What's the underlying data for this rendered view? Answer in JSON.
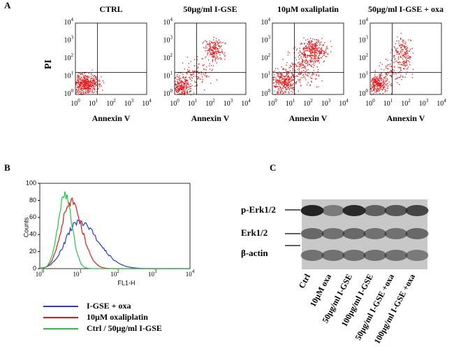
{
  "panel_a": {
    "label": "A",
    "y_label": "PI",
    "log_ticks": [
      {
        "base": "10",
        "exp": "0"
      },
      {
        "base": "10",
        "exp": "1"
      },
      {
        "base": "10",
        "exp": "2"
      },
      {
        "base": "10",
        "exp": "3"
      },
      {
        "base": "10",
        "exp": "4"
      }
    ],
    "plots": [
      {
        "title": "CTRL",
        "x_label": "Annexin V"
      },
      {
        "title": "50µg/ml I-GSE",
        "x_label": "Annexin V"
      },
      {
        "title": "10µM oxaliplatin",
        "x_label": "Annexin V"
      },
      {
        "title": "50µg/ml I-GSE + oxa",
        "x_label": "Annexin V"
      }
    ]
  },
  "panel_b": {
    "label": "B",
    "y_label": "Counts",
    "x_label": "FL1-H",
    "yticks": [
      0,
      20,
      40,
      60,
      80,
      100
    ],
    "legend": [
      {
        "name": "I-GSE + oxa",
        "color": "#1f3fd6"
      },
      {
        "name": "10µM oxaliplatin",
        "color": "#e01818"
      },
      {
        "name": "Ctrl / 50µg/ml I-GSE",
        "color": "#22c940"
      }
    ]
  },
  "panel_c": {
    "label": "C",
    "rows": [
      "p-Erk1/2",
      "Erk1/2",
      "β-actin"
    ],
    "lanes": [
      "Ctrl",
      "10µM oxa",
      "50µg/ml I-GSE",
      "100µg/ml I-GSE",
      "50µg/ml I-GSE +oxa",
      "100µg/ml I-GSE +oxa"
    ]
  }
}
